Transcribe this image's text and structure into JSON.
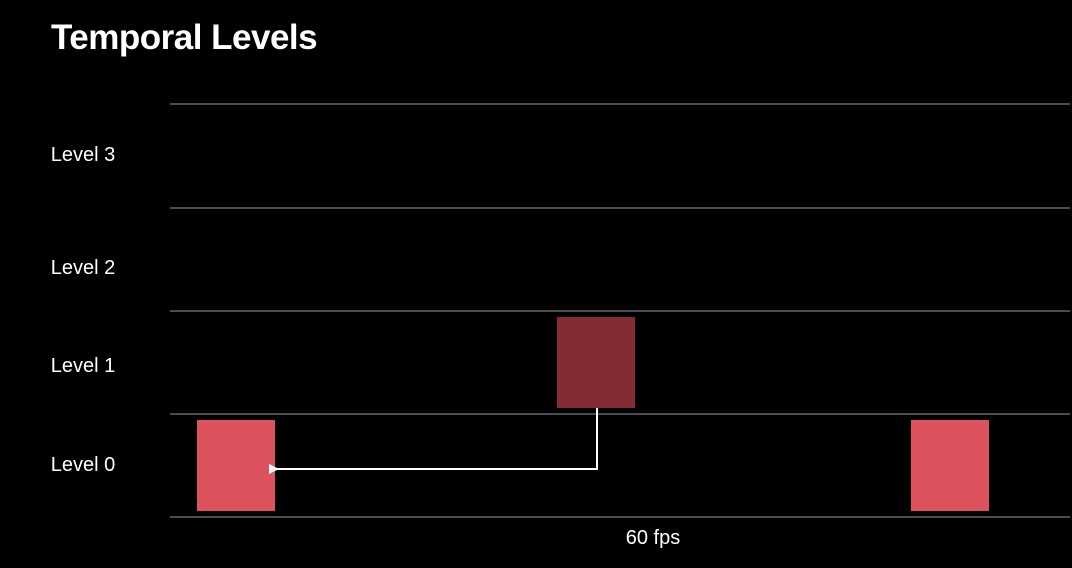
{
  "title": "Temporal Levels",
  "levels": [
    "Level 3",
    "Level 2",
    "Level 1",
    "Level 0"
  ],
  "footer": "60 fps",
  "frames": [
    {
      "level": "Level 0",
      "color": "#de525e"
    },
    {
      "level": "Level 1",
      "color": "#832c36"
    },
    {
      "level": "Level 0",
      "color": "#de525e"
    }
  ],
  "reference_arrow": {
    "from": "Level 1 frame",
    "to": "first Level 0 frame",
    "color": "#ffffff"
  },
  "colors": {
    "background": "#000000",
    "grid_line": "#4a4d52",
    "text": "#ffffff"
  }
}
